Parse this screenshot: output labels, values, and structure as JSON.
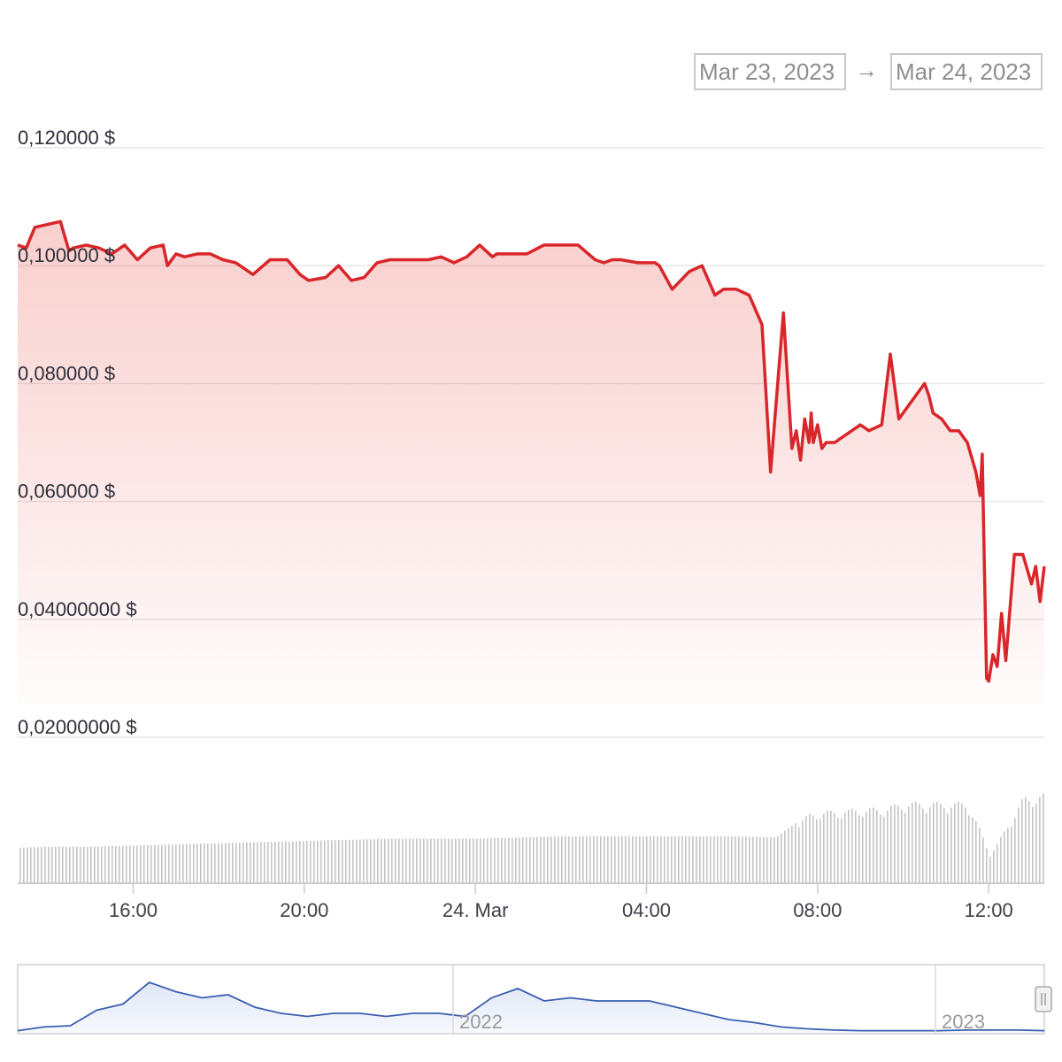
{
  "range_selector": {
    "from": "Mar 23, 2023",
    "arrow": "→",
    "to": "Mar 24, 2023"
  },
  "colors": {
    "price_line": "#d9262a",
    "volume_bar": "#c4c4c4",
    "navigator_line": "#3a5fb0",
    "grid": "#e6e6e6"
  },
  "chart_data": [
    {
      "type": "area",
      "role": "price",
      "y_tick_labels": [
        "0,120000 $",
        "0,100000 $",
        "0,080000 $",
        "0,060000 $",
        "0,04000000 $",
        "0,02000000 $"
      ],
      "y_ticks": [
        0.12,
        0.1,
        0.08,
        0.06,
        0.04,
        0.02
      ],
      "ylim": [
        0.02,
        0.12
      ],
      "x_tick_labels": [
        "16:00",
        "20:00",
        "24. Mar",
        "04:00",
        "08:00",
        "12:00"
      ],
      "x_ticks": [
        16,
        20,
        24,
        28,
        32,
        36
      ],
      "xlim": [
        13.3,
        37.3
      ],
      "grid": true,
      "series": [
        {
          "x": [
            13.3,
            13.5,
            13.7,
            14.0,
            14.3,
            14.5,
            14.6,
            14.9,
            15.2,
            15.5,
            15.8,
            16.1,
            16.4,
            16.7,
            16.8,
            17.0,
            17.2,
            17.5,
            17.8,
            18.1,
            18.4,
            18.8,
            19.2,
            19.6,
            19.9,
            20.1,
            20.5,
            20.8,
            21.1,
            21.4,
            21.7,
            22.0,
            22.3,
            22.6,
            22.9,
            23.2,
            23.5,
            23.8,
            24.1,
            24.4,
            24.5,
            24.8,
            25.2,
            25.6,
            26.0,
            26.4,
            26.8,
            27.0,
            27.2,
            27.4,
            27.8,
            28.2,
            28.3,
            28.6,
            29.0,
            29.3,
            29.6,
            29.8,
            30.1,
            30.4,
            30.7,
            30.9,
            31.2,
            31.4,
            31.5,
            31.6,
            31.7,
            31.8,
            31.85,
            31.9,
            32.0,
            32.1,
            32.2,
            32.4,
            32.6,
            32.8,
            33.0,
            33.2,
            33.5,
            33.7,
            33.9,
            34.1,
            34.3,
            34.5,
            34.6,
            34.7,
            34.9,
            35.1,
            35.3,
            35.5,
            35.7,
            35.8,
            35.85,
            35.9,
            35.95,
            36.0,
            36.1,
            36.2,
            36.3,
            36.4,
            36.6,
            36.8,
            37.0,
            37.1,
            37.2,
            37.3
          ],
          "y": [
            0.1035,
            0.103,
            0.1065,
            0.107,
            0.1075,
            0.1025,
            0.103,
            0.1035,
            0.103,
            0.102,
            0.1035,
            0.101,
            0.103,
            0.1035,
            0.1,
            0.102,
            0.1015,
            0.102,
            0.102,
            0.101,
            0.1005,
            0.0985,
            0.101,
            0.101,
            0.0985,
            0.0975,
            0.098,
            0.1,
            0.0975,
            0.098,
            0.1005,
            0.101,
            0.101,
            0.101,
            0.101,
            0.1015,
            0.1005,
            0.1015,
            0.1035,
            0.1015,
            0.102,
            0.102,
            0.102,
            0.1035,
            0.1035,
            0.1035,
            0.101,
            0.1005,
            0.101,
            0.101,
            0.1005,
            0.1005,
            0.1,
            0.096,
            0.099,
            0.1,
            0.095,
            0.096,
            0.096,
            0.095,
            0.09,
            0.065,
            0.092,
            0.069,
            0.072,
            0.067,
            0.074,
            0.07,
            0.075,
            0.07,
            0.073,
            0.069,
            0.07,
            0.07,
            0.071,
            0.072,
            0.073,
            0.072,
            0.073,
            0.085,
            0.074,
            0.076,
            0.078,
            0.08,
            0.078,
            0.075,
            0.074,
            0.072,
            0.072,
            0.07,
            0.065,
            0.061,
            0.068,
            0.049,
            0.03,
            0.0295,
            0.034,
            0.032,
            0.041,
            0.033,
            0.051,
            0.051,
            0.046,
            0.049,
            0.043,
            0.049
          ]
        }
      ]
    },
    {
      "type": "bar",
      "role": "volume",
      "description_values_relative": true,
      "x": [
        13.3,
        14,
        15,
        16,
        17,
        18,
        19,
        20,
        21,
        22,
        23,
        24,
        25,
        26,
        27,
        28,
        29,
        30,
        31,
        31.6,
        31.8,
        32,
        32.5,
        33,
        33.5,
        34,
        34.5,
        35,
        35.5,
        35.8,
        36,
        36.2,
        36.5,
        36.8,
        37,
        37.3
      ],
      "values": [
        0.3,
        0.31,
        0.31,
        0.32,
        0.33,
        0.34,
        0.35,
        0.36,
        0.37,
        0.38,
        0.38,
        0.38,
        0.39,
        0.4,
        0.4,
        0.4,
        0.4,
        0.4,
        0.39,
        0.55,
        0.6,
        0.62,
        0.63,
        0.65,
        0.65,
        0.7,
        0.7,
        0.7,
        0.7,
        0.45,
        0.25,
        0.35,
        0.55,
        0.75,
        0.75,
        0.78
      ]
    },
    {
      "type": "line",
      "role": "navigator",
      "x_tick_labels": [
        "2022",
        "2023"
      ],
      "values": [
        0.02,
        0.08,
        0.1,
        0.35,
        0.45,
        0.8,
        0.65,
        0.55,
        0.6,
        0.4,
        0.3,
        0.25,
        0.3,
        0.3,
        0.25,
        0.3,
        0.3,
        0.25,
        0.55,
        0.7,
        0.5,
        0.55,
        0.5,
        0.5,
        0.5,
        0.4,
        0.3,
        0.2,
        0.15,
        0.08,
        0.05,
        0.03,
        0.02,
        0.02,
        0.02,
        0.02,
        0.03,
        0.03,
        0.03,
        0.02
      ]
    }
  ]
}
